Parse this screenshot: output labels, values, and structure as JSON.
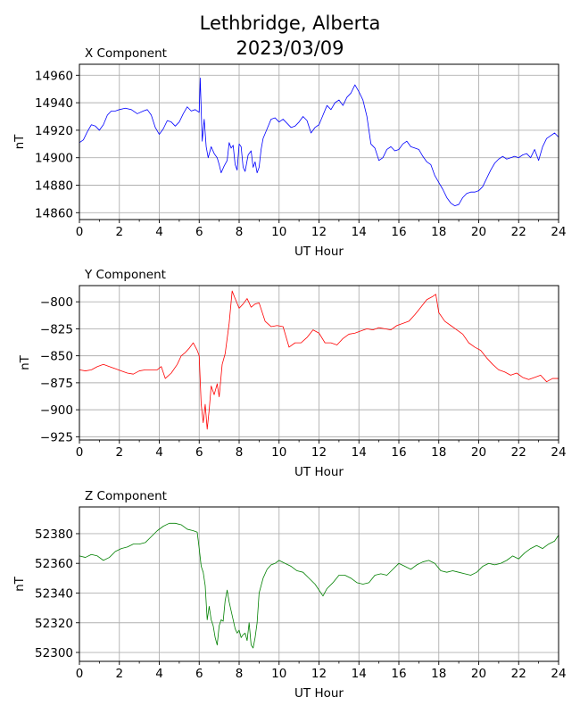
{
  "figure": {
    "title_line1": "Lethbridge, Alberta",
    "title_line2": "2023/03/09"
  },
  "chart_data": [
    {
      "type": "line",
      "title": "X Component",
      "xlabel": "UT Hour",
      "ylabel": "nT",
      "xlim": [
        0,
        24
      ],
      "ylim": [
        14855,
        14968
      ],
      "xticks": [
        0,
        2,
        4,
        6,
        8,
        10,
        12,
        14,
        16,
        18,
        20,
        22,
        24
      ],
      "yticks": [
        14860,
        14880,
        14900,
        14920,
        14940,
        14960
      ],
      "grid": true,
      "color": "#0000ff",
      "series": [
        {
          "x": [
            0,
            0.2,
            0.4,
            0.6,
            0.8,
            1.0,
            1.2,
            1.4,
            1.6,
            1.8,
            2.0,
            2.3,
            2.6,
            2.9,
            3.2,
            3.4,
            3.6,
            3.8,
            4.0,
            4.2,
            4.4,
            4.6,
            4.8,
            5.0,
            5.2,
            5.4,
            5.6,
            5.8,
            6.0,
            6.05,
            6.15,
            6.25,
            6.35,
            6.45,
            6.6,
            6.75,
            6.9,
            7.0,
            7.1,
            7.25,
            7.4,
            7.5,
            7.6,
            7.7,
            7.8,
            7.9,
            8.0,
            8.1,
            8.2,
            8.3,
            8.45,
            8.6,
            8.7,
            8.8,
            8.9,
            9.0,
            9.1,
            9.2,
            9.4,
            9.6,
            9.8,
            10.0,
            10.2,
            10.4,
            10.6,
            10.8,
            11.0,
            11.2,
            11.4,
            11.6,
            11.8,
            12.0,
            12.2,
            12.4,
            12.6,
            12.8,
            13.0,
            13.2,
            13.4,
            13.6,
            13.8,
            14.0,
            14.2,
            14.4,
            14.6,
            14.8,
            15.0,
            15.2,
            15.4,
            15.6,
            15.8,
            16.0,
            16.2,
            16.4,
            16.6,
            16.8,
            17.0,
            17.2,
            17.4,
            17.6,
            17.8,
            18.0,
            18.2,
            18.4,
            18.6,
            18.8,
            19.0,
            19.2,
            19.4,
            19.6,
            19.8,
            20.0,
            20.2,
            20.4,
            20.6,
            20.8,
            21.0,
            21.2,
            21.4,
            21.6,
            21.8,
            22.0,
            22.2,
            22.4,
            22.6,
            22.8,
            23.0,
            23.2,
            23.4,
            23.6,
            23.8,
            24.0
          ],
          "y": [
            14911,
            14913,
            14919,
            14924,
            14923,
            14920,
            14924,
            14931,
            14934,
            14934,
            14935,
            14936,
            14935,
            14932,
            14934,
            14935,
            14931,
            14922,
            14917,
            14921,
            14927,
            14926,
            14923,
            14926,
            14932,
            14937,
            14934,
            14935,
            14933,
            14958,
            14912,
            14928,
            14908,
            14900,
            14908,
            14903,
            14900,
            14895,
            14889,
            14894,
            14898,
            14911,
            14907,
            14909,
            14895,
            14891,
            14910,
            14908,
            14893,
            14890,
            14902,
            14905,
            14893,
            14897,
            14889,
            14893,
            14906,
            14914,
            14921,
            14928,
            14929,
            14926,
            14928,
            14925,
            14922,
            14923,
            14926,
            14930,
            14927,
            14918,
            14922,
            14924,
            14931,
            14938,
            14935,
            14940,
            14942,
            14938,
            14944,
            14947,
            14953,
            14948,
            14942,
            14930,
            14910,
            14907,
            14898,
            14900,
            14906,
            14908,
            14905,
            14906,
            14910,
            14912,
            14908,
            14907,
            14906,
            14901,
            14897,
            14895,
            14887,
            14882,
            14877,
            14871,
            14867,
            14865,
            14866,
            14871,
            14874,
            14875,
            14875,
            14876,
            14879,
            14885,
            14891,
            14896,
            14899,
            14901,
            14899,
            14900,
            14901,
            14900,
            14902,
            14903,
            14900,
            14906,
            14898,
            14908,
            14914,
            14916,
            14918,
            14915
          ]
        }
      ]
    },
    {
      "type": "line",
      "title": "Y Component",
      "xlabel": "UT Hour",
      "ylabel": "nT",
      "xlim": [
        0,
        24
      ],
      "ylim": [
        -928,
        -785
      ],
      "xticks": [
        0,
        2,
        4,
        6,
        8,
        10,
        12,
        14,
        16,
        18,
        20,
        22,
        24
      ],
      "yticks": [
        -800,
        -825,
        -850,
        -875,
        -900,
        -925
      ],
      "grid": true,
      "color": "#ff0000",
      "series": [
        {
          "x": [
            0,
            0.3,
            0.6,
            0.9,
            1.2,
            1.5,
            1.8,
            2.1,
            2.4,
            2.7,
            3.0,
            3.3,
            3.6,
            3.9,
            4.1,
            4.3,
            4.6,
            4.9,
            5.1,
            5.3,
            5.5,
            5.7,
            5.9,
            6.0,
            6.1,
            6.2,
            6.3,
            6.4,
            6.5,
            6.6,
            6.75,
            6.9,
            7.0,
            7.15,
            7.3,
            7.5,
            7.65,
            7.8,
            8.0,
            8.2,
            8.4,
            8.6,
            8.8,
            9.0,
            9.3,
            9.6,
            9.9,
            10.2,
            10.5,
            10.8,
            11.1,
            11.4,
            11.7,
            12.0,
            12.3,
            12.6,
            12.9,
            13.2,
            13.5,
            13.8,
            14.1,
            14.4,
            14.7,
            15.0,
            15.3,
            15.6,
            15.9,
            16.2,
            16.5,
            16.8,
            17.1,
            17.4,
            17.7,
            17.85,
            18.0,
            18.3,
            18.6,
            18.9,
            19.2,
            19.5,
            19.8,
            20.1,
            20.4,
            20.7,
            21.0,
            21.3,
            21.6,
            21.9,
            22.2,
            22.5,
            22.8,
            23.1,
            23.4,
            23.7,
            24.0
          ],
          "y": [
            -863,
            -864,
            -863,
            -860,
            -858,
            -860,
            -862,
            -864,
            -866,
            -867,
            -864,
            -863,
            -863,
            -863,
            -860,
            -871,
            -866,
            -858,
            -850,
            -847,
            -843,
            -838,
            -845,
            -850,
            -895,
            -912,
            -895,
            -918,
            -900,
            -878,
            -886,
            -876,
            -888,
            -858,
            -848,
            -820,
            -790,
            -797,
            -806,
            -802,
            -797,
            -805,
            -802,
            -801,
            -818,
            -823,
            -822,
            -823,
            -842,
            -838,
            -838,
            -833,
            -826,
            -829,
            -838,
            -838,
            -840,
            -834,
            -830,
            -829,
            -827,
            -825,
            -826,
            -824,
            -825,
            -826,
            -822,
            -820,
            -818,
            -812,
            -805,
            -798,
            -795,
            -793,
            -810,
            -818,
            -822,
            -826,
            -830,
            -838,
            -842,
            -845,
            -852,
            -858,
            -863,
            -865,
            -868,
            -866,
            -870,
            -872,
            -870,
            -868,
            -874,
            -871,
            -871
          ]
        }
      ]
    },
    {
      "type": "line",
      "title": "Z Component",
      "xlabel": "UT Hour",
      "ylabel": "nT",
      "xlim": [
        0,
        24
      ],
      "ylim": [
        52294,
        52398
      ],
      "xticks": [
        0,
        2,
        4,
        6,
        8,
        10,
        12,
        14,
        16,
        18,
        20,
        22,
        24
      ],
      "yticks": [
        52300,
        52320,
        52340,
        52360,
        52380
      ],
      "grid": true,
      "color": "#008000",
      "series": [
        {
          "x": [
            0,
            0.3,
            0.6,
            0.9,
            1.2,
            1.5,
            1.8,
            2.1,
            2.4,
            2.7,
            3.0,
            3.3,
            3.6,
            3.9,
            4.2,
            4.5,
            4.8,
            5.1,
            5.4,
            5.7,
            5.9,
            6.0,
            6.1,
            6.2,
            6.3,
            6.4,
            6.5,
            6.6,
            6.7,
            6.8,
            6.9,
            7.0,
            7.1,
            7.2,
            7.3,
            7.4,
            7.5,
            7.6,
            7.7,
            7.8,
            7.9,
            8.0,
            8.1,
            8.2,
            8.3,
            8.4,
            8.5,
            8.6,
            8.7,
            8.8,
            8.9,
            9.0,
            9.2,
            9.4,
            9.6,
            9.8,
            10.0,
            10.3,
            10.6,
            10.9,
            11.2,
            11.5,
            11.8,
            12.0,
            12.2,
            12.4,
            12.7,
            13.0,
            13.3,
            13.6,
            13.9,
            14.2,
            14.5,
            14.8,
            15.1,
            15.4,
            15.7,
            16.0,
            16.3,
            16.6,
            16.9,
            17.2,
            17.5,
            17.8,
            18.1,
            18.4,
            18.7,
            19.0,
            19.3,
            19.6,
            19.9,
            20.2,
            20.5,
            20.8,
            21.1,
            21.4,
            21.7,
            22.0,
            22.3,
            22.6,
            22.9,
            23.2,
            23.5,
            23.8,
            24.0
          ],
          "y": [
            52365,
            52364,
            52366,
            52365,
            52362,
            52364,
            52368,
            52370,
            52371,
            52373,
            52373,
            52374,
            52378,
            52382,
            52385,
            52387,
            52387,
            52386,
            52383,
            52382,
            52381,
            52370,
            52358,
            52354,
            52345,
            52322,
            52331,
            52322,
            52318,
            52310,
            52305,
            52318,
            52322,
            52321,
            52335,
            52342,
            52334,
            52328,
            52322,
            52316,
            52313,
            52315,
            52310,
            52312,
            52313,
            52308,
            52320,
            52305,
            52303,
            52310,
            52320,
            52340,
            52350,
            52356,
            52359,
            52360,
            52362,
            52360,
            52358,
            52355,
            52354,
            52350,
            52346,
            52342,
            52338,
            52343,
            52347,
            52352,
            52352,
            52350,
            52347,
            52346,
            52347,
            52352,
            52353,
            52352,
            52356,
            52360,
            52358,
            52356,
            52359,
            52361,
            52362,
            52360,
            52355,
            52354,
            52355,
            52354,
            52353,
            52352,
            52354,
            52358,
            52360,
            52359,
            52360,
            52362,
            52365,
            52363,
            52367,
            52370,
            52372,
            52370,
            52373,
            52375,
            52379
          ]
        }
      ]
    }
  ]
}
